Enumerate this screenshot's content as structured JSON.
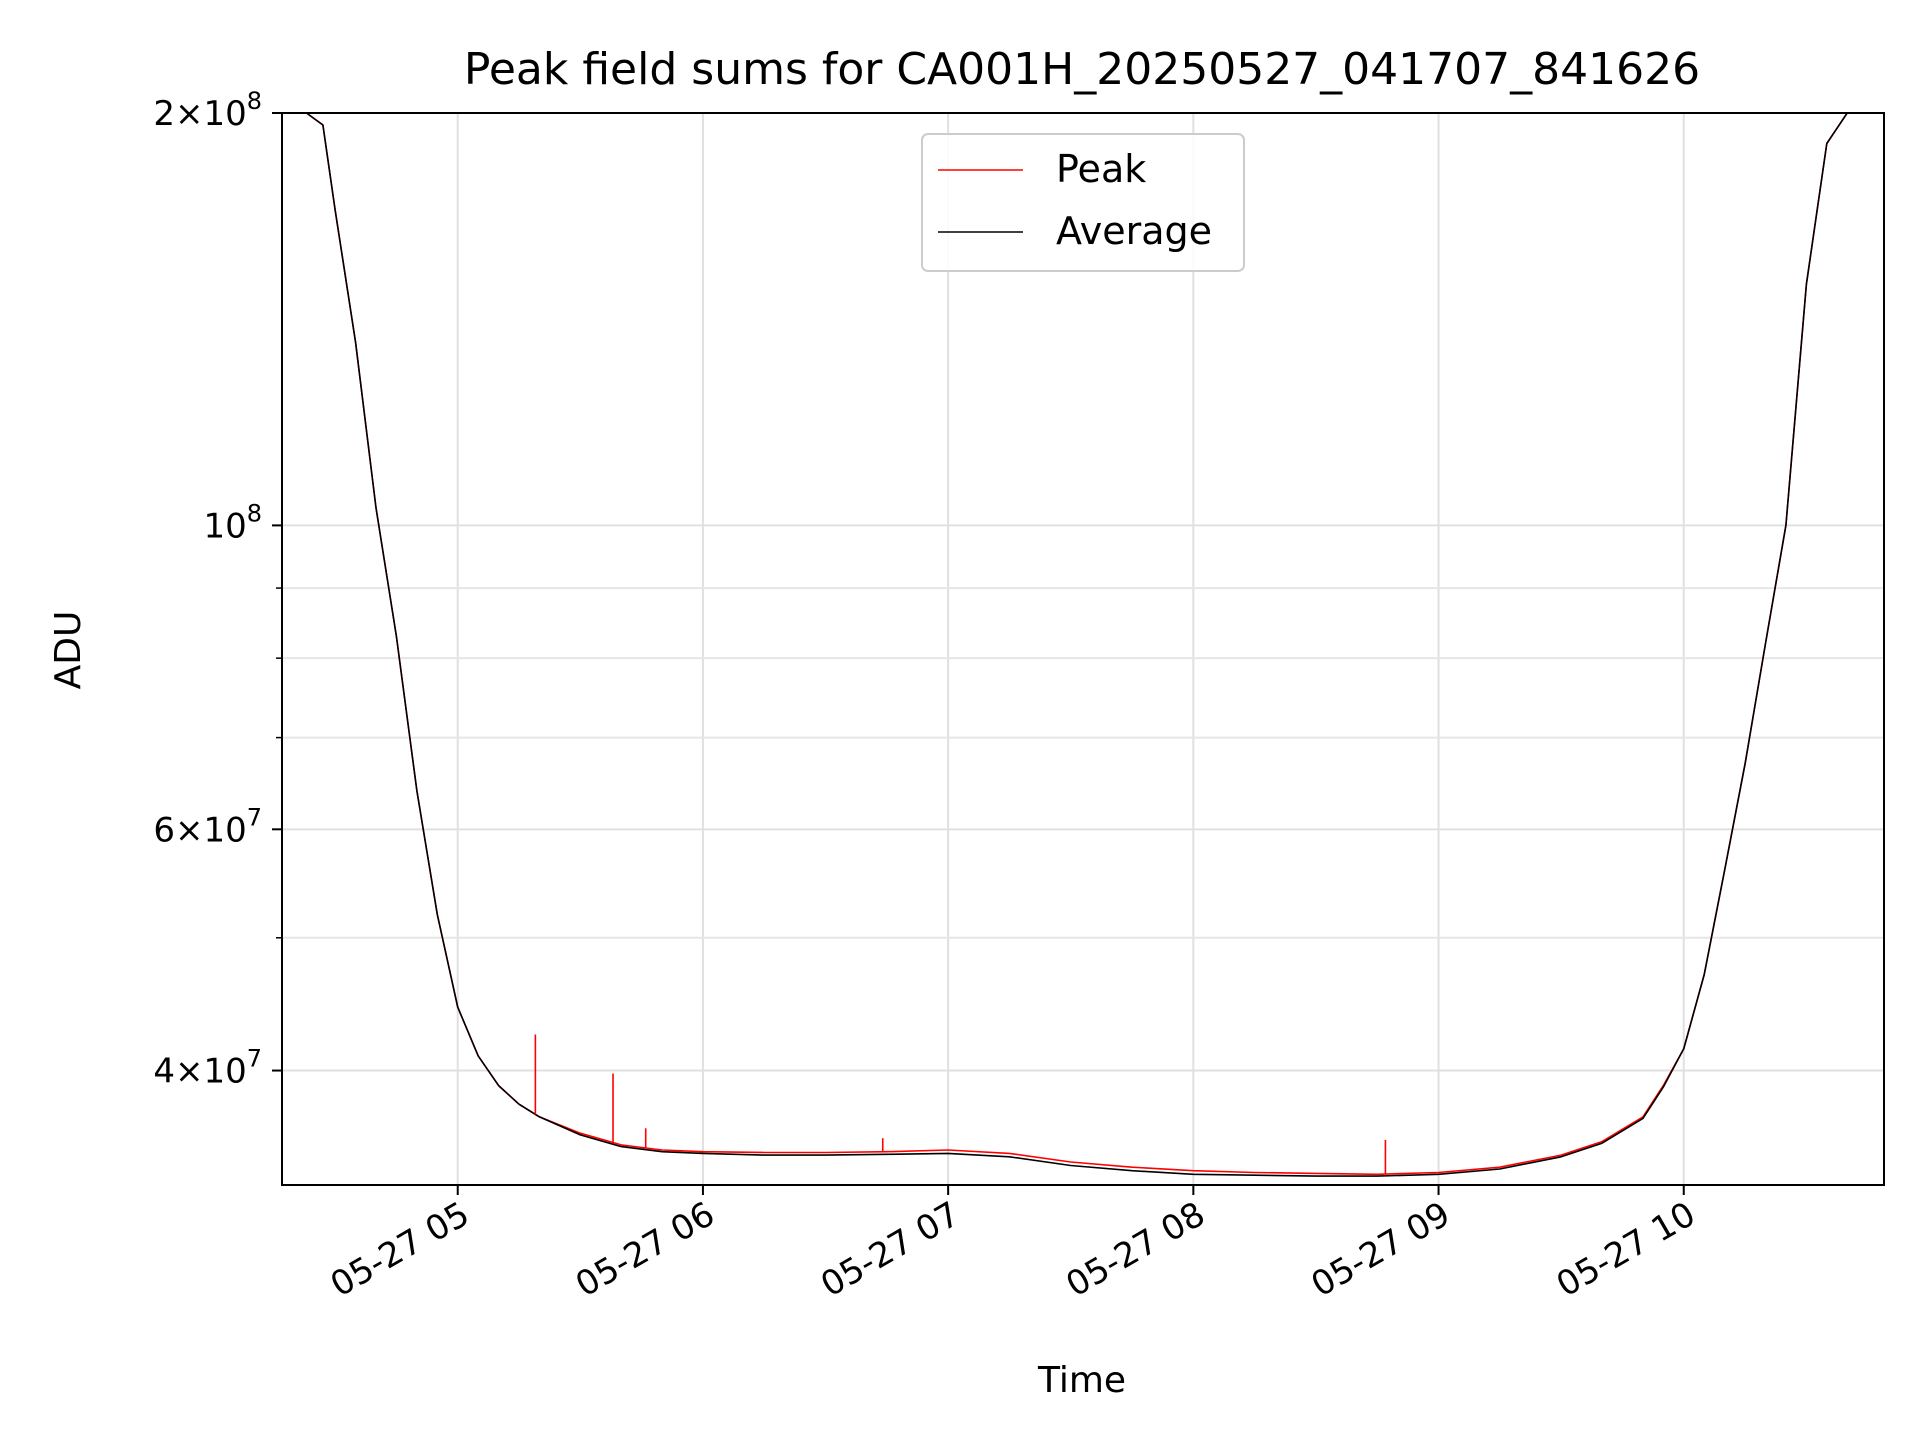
{
  "chart_data": {
    "type": "line",
    "title": "Peak field sums for CA001H_20250527_041707_841626",
    "xlabel": "Time",
    "ylabel": "ADU",
    "yscale": "log",
    "ylim": [
      33000000,
      200000000
    ],
    "xlim": [
      "2025-05-27 04:17",
      "2025-05-27 10:49"
    ],
    "x_tick_labels": [
      "05-27 05",
      "05-27 06",
      "05-27 07",
      "05-27 08",
      "05-27 09",
      "05-27 10"
    ],
    "x_ticks": [
      "2025-05-27 05:00",
      "2025-05-27 06:00",
      "2025-05-27 07:00",
      "2025-05-27 08:00",
      "2025-05-27 09:00",
      "2025-05-27 10:00"
    ],
    "y_major_tick_labels": [
      {
        "value": 40000000,
        "mantissa": "4",
        "exponent": "7"
      },
      {
        "value": 60000000,
        "mantissa": "6",
        "exponent": "7"
      },
      {
        "value": 100000000,
        "mantissa": "",
        "exponent": "8"
      },
      {
        "value": 200000000,
        "mantissa": "2",
        "exponent": "8"
      }
    ],
    "y_minor_ticks": [
      50000000,
      70000000,
      80000000,
      90000000
    ],
    "grid": true,
    "legend_position": "upper center",
    "series": [
      {
        "name": "Peak",
        "color": "#ff0000",
        "x": [
          "2025-05-27 04:17",
          "2025-05-27 04:20",
          "2025-05-27 04:23",
          "2025-05-27 04:27",
          "2025-05-27 04:30",
          "2025-05-27 04:35",
          "2025-05-27 04:40",
          "2025-05-27 04:45",
          "2025-05-27 04:50",
          "2025-05-27 04:55",
          "2025-05-27 05:00",
          "2025-05-27 05:05",
          "2025-05-27 05:10",
          "2025-05-27 05:15",
          "2025-05-27 05:20",
          "2025-05-27 05:30",
          "2025-05-27 05:40",
          "2025-05-27 05:50",
          "2025-05-27 06:00",
          "2025-05-27 06:15",
          "2025-05-27 06:30",
          "2025-05-27 06:45",
          "2025-05-27 07:00",
          "2025-05-27 07:15",
          "2025-05-27 07:30",
          "2025-05-27 07:45",
          "2025-05-27 08:00",
          "2025-05-27 08:15",
          "2025-05-27 08:30",
          "2025-05-27 08:45",
          "2025-05-27 09:00",
          "2025-05-27 09:15",
          "2025-05-27 09:30",
          "2025-05-27 09:40",
          "2025-05-27 09:50",
          "2025-05-27 09:55",
          "2025-05-27 10:00",
          "2025-05-27 10:05",
          "2025-05-27 10:10",
          "2025-05-27 10:15",
          "2025-05-27 10:20",
          "2025-05-27 10:25",
          "2025-05-27 10:30",
          "2025-05-27 10:35",
          "2025-05-27 10:40",
          "2025-05-27 10:45",
          "2025-05-27 10:49"
        ],
        "y": [
          200000000,
          200000000,
          200000000,
          196000000,
          170000000,
          136000000,
          103000000,
          83000000,
          64000000,
          52000000,
          44500000,
          41000000,
          39000000,
          37800000,
          37000000,
          36000000,
          35300000,
          35000000,
          34900000,
          34850000,
          34850000,
          34900000,
          35000000,
          34800000,
          34300000,
          34000000,
          33800000,
          33700000,
          33650000,
          33600000,
          33700000,
          34000000,
          34700000,
          35500000,
          37000000,
          39000000,
          41500000,
          47000000,
          56000000,
          67000000,
          82000000,
          100000000,
          150000000,
          190000000,
          200000000,
          200000000,
          200000000
        ]
      },
      {
        "name": "Average",
        "color": "#000000",
        "x": [
          "2025-05-27 04:17",
          "2025-05-27 04:20",
          "2025-05-27 04:23",
          "2025-05-27 04:27",
          "2025-05-27 04:30",
          "2025-05-27 04:35",
          "2025-05-27 04:40",
          "2025-05-27 04:45",
          "2025-05-27 04:50",
          "2025-05-27 04:55",
          "2025-05-27 05:00",
          "2025-05-27 05:05",
          "2025-05-27 05:10",
          "2025-05-27 05:15",
          "2025-05-27 05:20",
          "2025-05-27 05:30",
          "2025-05-27 05:40",
          "2025-05-27 05:50",
          "2025-05-27 06:00",
          "2025-05-27 06:15",
          "2025-05-27 06:30",
          "2025-05-27 06:45",
          "2025-05-27 07:00",
          "2025-05-27 07:15",
          "2025-05-27 07:30",
          "2025-05-27 07:45",
          "2025-05-27 08:00",
          "2025-05-27 08:15",
          "2025-05-27 08:30",
          "2025-05-27 08:45",
          "2025-05-27 09:00",
          "2025-05-27 09:15",
          "2025-05-27 09:30",
          "2025-05-27 09:40",
          "2025-05-27 09:50",
          "2025-05-27 09:55",
          "2025-05-27 10:00",
          "2025-05-27 10:05",
          "2025-05-27 10:10",
          "2025-05-27 10:15",
          "2025-05-27 10:20",
          "2025-05-27 10:25",
          "2025-05-27 10:30",
          "2025-05-27 10:35",
          "2025-05-27 10:40",
          "2025-05-27 10:45",
          "2025-05-27 10:49"
        ],
        "y": [
          200000000,
          200000000,
          200000000,
          196000000,
          170000000,
          136000000,
          103000000,
          83000000,
          64000000,
          52000000,
          44500000,
          41000000,
          39000000,
          37800000,
          37000000,
          35900000,
          35200000,
          34900000,
          34800000,
          34700000,
          34700000,
          34750000,
          34800000,
          34600000,
          34100000,
          33800000,
          33600000,
          33550000,
          33500000,
          33500000,
          33600000,
          33900000,
          34600000,
          35400000,
          36900000,
          38900000,
          41500000,
          47000000,
          56000000,
          67000000,
          82000000,
          100000000,
          150000000,
          190000000,
          200000000,
          200000000,
          200000000
        ]
      }
    ],
    "annotations_spikes": [
      {
        "x": "2025-05-27 05:19",
        "y": 42500000
      },
      {
        "x": "2025-05-27 05:38",
        "y": 39800000
      },
      {
        "x": "2025-05-27 05:46",
        "y": 36300000
      },
      {
        "x": "2025-05-27 06:44",
        "y": 35700000
      },
      {
        "x": "2025-05-27 08:47",
        "y": 35600000
      }
    ]
  }
}
